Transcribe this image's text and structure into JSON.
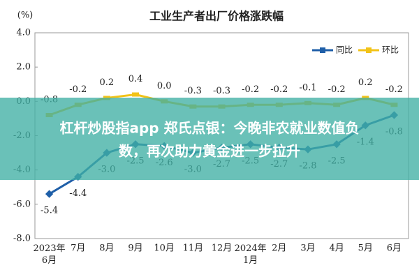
{
  "chart_data": {
    "type": "line",
    "title": "工业生产者出厂价格涨跌幅",
    "y_unit": "(%)",
    "categories": [
      "2023年\n6月",
      "7月",
      "8月",
      "9月",
      "10月",
      "11月",
      "12月",
      "2024年\n1月",
      "2月",
      "3月",
      "4月",
      "5月",
      "6月"
    ],
    "series": [
      {
        "name": "同比",
        "color": "#1f5fa8",
        "values": [
          -5.4,
          -4.4,
          -3.0,
          -2.5,
          -2.6,
          -3.0,
          -2.7,
          -2.5,
          -2.7,
          -2.8,
          -2.5,
          -1.4,
          -0.8
        ],
        "value_labels": [
          "-5.4",
          "-4.4",
          "-3.0",
          "-2.5",
          "-2.6",
          "-3.0",
          "-2.7",
          "-2.5",
          "-2.7",
          "-2.8",
          "-2.5",
          "-1.4",
          "-0.8"
        ]
      },
      {
        "name": "环比",
        "color": "#f2c318",
        "values": [
          -0.8,
          -0.2,
          0.2,
          0.4,
          0.0,
          -0.3,
          -0.3,
          -0.2,
          -0.2,
          -0.1,
          -0.2,
          0.2,
          -0.2
        ],
        "value_labels": [
          "-0.8",
          "-0.2",
          "0.2",
          "0.4",
          "0.0",
          "-0.3",
          "-0.3",
          "-0.2",
          "-0.2",
          "-0.1",
          "-0.2",
          "0.2",
          "-0.2"
        ]
      }
    ],
    "ylim": [
      -8,
      4
    ],
    "yticks": [
      {
        "value": 4,
        "label": "4.0"
      },
      {
        "value": 2,
        "label": "2.0"
      },
      {
        "value": 0,
        "label": "0.0"
      },
      {
        "value": -2,
        "label": "-2.0"
      },
      {
        "value": -4,
        "label": "-4.0"
      },
      {
        "value": -6,
        "label": "-6.0"
      },
      {
        "value": -8,
        "label": "-8.0"
      }
    ],
    "grid": false,
    "legend": "upper right"
  },
  "banner": {
    "lines": [
      "杠杆炒股指app 郑氏点银：今晚非农就业数值负",
      "数，再次助力黄金进一步拉升"
    ]
  }
}
